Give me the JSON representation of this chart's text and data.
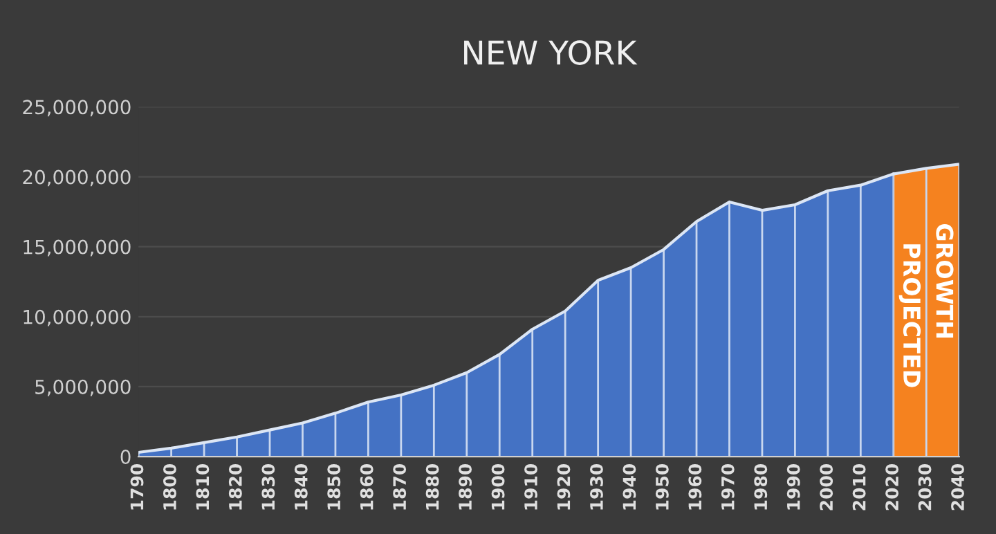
{
  "chart_data": {
    "type": "area",
    "title": "NEW YORK",
    "series": [
      {
        "color": "#4472c4",
        "x": [
          1790,
          1800,
          1810,
          1820,
          1830,
          1840,
          1850,
          1860,
          1870,
          1880,
          1890,
          1900,
          1910,
          1920,
          1930,
          1940,
          1950,
          1960,
          1970,
          1980,
          1990,
          2000,
          2010,
          2020
        ],
        "values": [
          300000,
          600000,
          1000000,
          1400000,
          1900000,
          2400000,
          3100000,
          3900000,
          4400000,
          5100000,
          6000000,
          7300000,
          9100000,
          10400000,
          12600000,
          13500000,
          14800000,
          16800000,
          18200000,
          17600000,
          18000000,
          19000000,
          19400000,
          20200000
        ]
      },
      {
        "color": "#f5821f",
        "x": [
          2020,
          2030,
          2040
        ],
        "values": [
          20200000,
          20600000,
          20900000
        ]
      }
    ],
    "xlim": [
      1790,
      2040
    ],
    "xticks": [
      1790,
      1800,
      1810,
      1820,
      1830,
      1840,
      1850,
      1860,
      1870,
      1880,
      1890,
      1900,
      1910,
      1920,
      1930,
      1940,
      1950,
      1960,
      1970,
      1980,
      1990,
      2000,
      2010,
      2020,
      2030,
      2040
    ],
    "ylim": [
      0,
      25000000
    ],
    "yticks": [
      {
        "value": 0,
        "label": "0"
      },
      {
        "value": 5000000,
        "label": "5,000,000"
      },
      {
        "value": 10000000,
        "label": "10,000,000"
      },
      {
        "value": 15000000,
        "label": "15,000,000"
      },
      {
        "value": 20000000,
        "label": "20,000,000"
      },
      {
        "value": 25000000,
        "label": "25,000,000"
      }
    ],
    "grid": true,
    "annotations": [
      "PROJECTED",
      "GROWTH"
    ]
  }
}
